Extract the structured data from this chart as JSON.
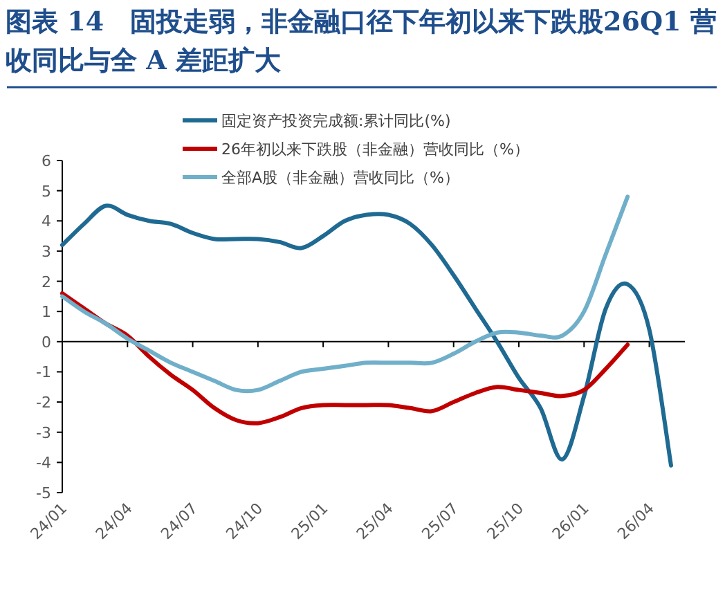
{
  "chart_data": {
    "type": "line",
    "title": "图表 14　固投走弱，非金融口径下年初以来下跌股26Q1 营收同比与全 A 差距扩大",
    "categories": [
      "24/01",
      null,
      null,
      "24/04",
      null,
      null,
      "24/07",
      null,
      null,
      "24/10",
      null,
      null,
      "25/01",
      null,
      null,
      "25/04",
      null,
      null,
      "25/07",
      null,
      null,
      "25/10",
      null,
      null,
      "26/01",
      null,
      null,
      "26/04",
      null
    ],
    "series": [
      {
        "name": "固定资产投资完成额:累计同比(%)",
        "color": "#1f6a92",
        "values": [
          3.2,
          3.9,
          4.5,
          4.2,
          4.0,
          3.9,
          3.6,
          3.4,
          3.4,
          3.4,
          3.3,
          3.1,
          3.5,
          4.0,
          4.2,
          4.2,
          3.9,
          3.2,
          2.2,
          1.1,
          0.0,
          -1.2,
          -2.2,
          -3.9,
          -1.8,
          1.1,
          1.9,
          0.4,
          -4.1
        ]
      },
      {
        "name": "26年初以来下跌股（非金融）营收同比（%）",
        "color": "#c00000",
        "values": [
          1.6,
          1.1,
          0.6,
          0.2,
          -0.5,
          -1.1,
          -1.6,
          -2.2,
          -2.6,
          -2.7,
          -2.5,
          -2.2,
          -2.1,
          -2.1,
          -2.1,
          -2.1,
          -2.2,
          -2.3,
          -2.0,
          -1.7,
          -1.5,
          -1.6,
          -1.7,
          -1.8,
          -1.6,
          -0.9,
          -0.1,
          null,
          null
        ]
      },
      {
        "name": "全部A股（非金融）营收同比（%）",
        "color": "#70afc9",
        "values": [
          1.5,
          1.0,
          0.6,
          0.1,
          -0.3,
          -0.7,
          -1.0,
          -1.3,
          -1.6,
          -1.6,
          -1.3,
          -1.0,
          -0.9,
          -0.8,
          -0.7,
          -0.7,
          -0.7,
          -0.7,
          -0.4,
          0.0,
          0.3,
          0.3,
          0.2,
          0.2,
          1.0,
          2.9,
          4.8,
          null,
          null
        ]
      }
    ],
    "ylim": [
      -5,
      6
    ],
    "yticks": [
      -5,
      -4,
      -3,
      -2,
      -1,
      0,
      1,
      2,
      3,
      4,
      5,
      6
    ],
    "legend": "top",
    "marker": "none",
    "line_style": "solid"
  }
}
